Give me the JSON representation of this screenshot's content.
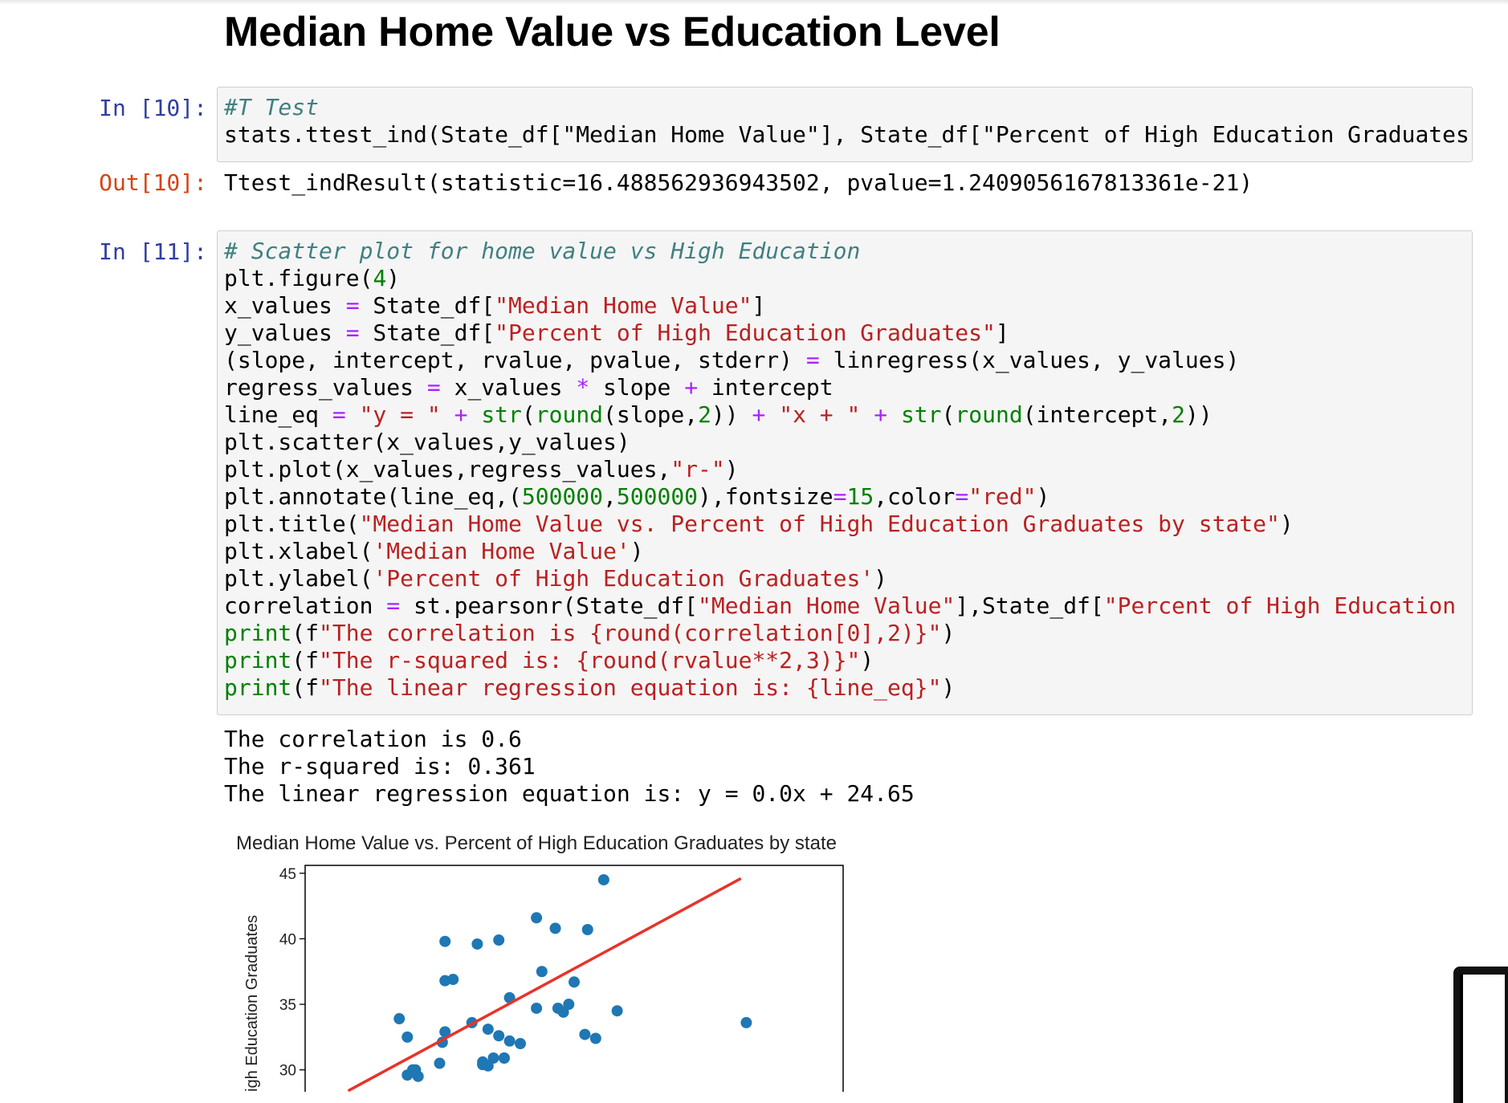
{
  "notebook": {
    "heading": "Median Home Value vs Education Level",
    "cells": [
      {
        "in_prompt": "In [10]:",
        "out_prompt": "Out[10]:",
        "code_lines": [
          "#T Test",
          "stats.ttest_ind(State_df[\"Median Home Value\"], State_df[\"Percent of High Education Graduates'"
        ],
        "output": "Ttest_indResult(statistic=16.488562936943502, pvalue=1.2409056167813361e-21)"
      },
      {
        "in_prompt": "In [11]:",
        "code_lines": [
          "# Scatter plot for home value vs High Education",
          "plt.figure(4)",
          "x_values = State_df[\"Median Home Value\"]",
          "y_values = State_df[\"Percent of High Education Graduates\"]",
          "(slope, intercept, rvalue, pvalue, stderr) = linregress(x_values, y_values)",
          "regress_values = x_values * slope + intercept",
          "line_eq = \"y = \" + str(round(slope,2)) + \"x + \" + str(round(intercept,2))",
          "plt.scatter(x_values,y_values)",
          "plt.plot(x_values,regress_values,\"r-\")",
          "plt.annotate(line_eq,(500000,500000),fontsize=15,color=\"red\")",
          "plt.title(\"Median Home Value vs. Percent of High Education Graduates by state\")",
          "plt.xlabel('Median Home Value')",
          "plt.ylabel('Percent of High Education Graduates')",
          "correlation = st.pearsonr(State_df[\"Median Home Value\"],State_df[\"Percent of High Education (",
          "print(f\"The correlation is {round(correlation[0],2)}\")",
          "print(f\"The r-squared is: {round(rvalue**2,3)}\")",
          "print(f\"The linear regression equation is: {line_eq}\")"
        ],
        "output_lines": [
          "The correlation is 0.6",
          "The r-squared is: 0.361",
          "The linear regression equation is: y = 0.0x + 24.65"
        ]
      }
    ]
  },
  "colors": {
    "in_prompt": "#303f9f",
    "out_prompt": "#d84315",
    "comment": "#408080",
    "string": "#ba2121",
    "number": "#008000",
    "operator": "#aa22ff",
    "point": "#1f77b4",
    "regression_line": "#e8332a"
  },
  "chart_data": {
    "type": "scatter",
    "title": "Median Home Value vs. Percent of High Education Graduates by state",
    "ylabel": "igh Education Graduates",
    "ylim": [
      26,
      45.6
    ],
    "xlim": [
      0,
      1
    ],
    "yticks": [
      30,
      35,
      40,
      45
    ],
    "grid": false,
    "series": [
      {
        "x": [
          0.555,
          0.43,
          0.465,
          0.525,
          0.26,
          0.36,
          0.32,
          0.44,
          0.5,
          0.26,
          0.275,
          0.49,
          0.47,
          0.58,
          0.43,
          0.48,
          0.82,
          0.34,
          0.54,
          0.52,
          0.255,
          0.19,
          0.36,
          0.38,
          0.4,
          0.38,
          0.175,
          0.31,
          0.26,
          0.25,
          0.35,
          0.37,
          0.205,
          0.21,
          0.33,
          0.34,
          0.33,
          0.37,
          0.2,
          0.19
        ],
        "y": [
          44.5,
          41.6,
          40.8,
          40.7,
          39.8,
          39.9,
          39.6,
          37.5,
          36.7,
          36.8,
          36.9,
          35.0,
          34.7,
          34.5,
          34.7,
          34.4,
          33.6,
          33.1,
          32.4,
          32.7,
          32.1,
          32.5,
          32.6,
          32.2,
          32.0,
          35.5,
          33.9,
          33.6,
          32.9,
          30.5,
          30.9,
          30.9,
          30.0,
          29.5,
          30.4,
          30.3,
          30.6,
          30.9,
          30.0,
          29.6
        ]
      }
    ],
    "regression_line": {
      "x": [
        0.08,
        0.81
      ],
      "y": [
        28.4,
        44.6
      ]
    }
  }
}
